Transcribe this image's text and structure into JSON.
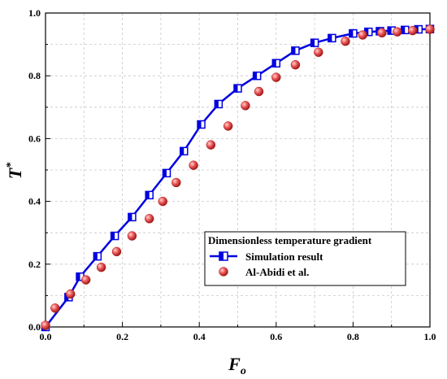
{
  "chart_data": {
    "type": "line",
    "xlabel": "F",
    "xlabel_sub": "o",
    "ylabel": "T",
    "ylabel_sup": "*",
    "xlim": [
      0.0,
      1.0
    ],
    "ylim": [
      0.0,
      1.0
    ],
    "x_ticks": [
      "0.0",
      "0.2",
      "0.4",
      "0.6",
      "0.8",
      "1.0"
    ],
    "y_ticks": [
      "0.0",
      "0.2",
      "0.4",
      "0.6",
      "0.8",
      "1.0"
    ],
    "grid": true,
    "legend_placement": "bottom-right",
    "legend_title": "Dimensionless temperature gradient",
    "series": [
      {
        "name": "Simulation result",
        "color": "#0000e0",
        "marker": "half-filled-square",
        "x": [
          0.0,
          0.06,
          0.09,
          0.135,
          0.18,
          0.225,
          0.27,
          0.315,
          0.36,
          0.405,
          0.45,
          0.5,
          0.55,
          0.6,
          0.65,
          0.7,
          0.745,
          0.8,
          0.84,
          0.87,
          0.9,
          0.935,
          0.97,
          1.0
        ],
        "values": [
          0.0,
          0.095,
          0.16,
          0.225,
          0.29,
          0.35,
          0.42,
          0.49,
          0.56,
          0.645,
          0.71,
          0.76,
          0.8,
          0.84,
          0.88,
          0.905,
          0.92,
          0.935,
          0.94,
          0.942,
          0.944,
          0.946,
          0.948,
          0.949
        ]
      },
      {
        "name": "Al-Abidi et al.",
        "color": "#e04040",
        "marker": "sphere",
        "x": [
          0.0,
          0.025,
          0.065,
          0.105,
          0.145,
          0.185,
          0.225,
          0.27,
          0.305,
          0.34,
          0.385,
          0.43,
          0.475,
          0.52,
          0.555,
          0.6,
          0.65,
          0.71,
          0.78,
          0.825,
          0.875,
          0.915,
          0.955,
          1.0
        ],
        "values": [
          0.005,
          0.06,
          0.105,
          0.15,
          0.19,
          0.24,
          0.29,
          0.345,
          0.4,
          0.46,
          0.515,
          0.58,
          0.64,
          0.705,
          0.75,
          0.795,
          0.835,
          0.875,
          0.91,
          0.93,
          0.937,
          0.94,
          0.944,
          0.948
        ]
      }
    ]
  }
}
